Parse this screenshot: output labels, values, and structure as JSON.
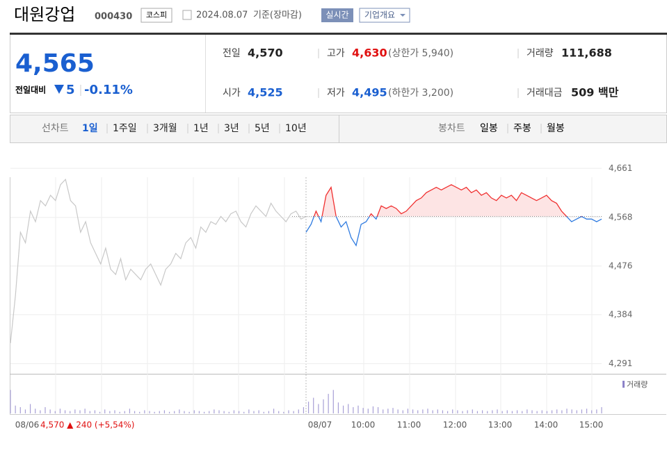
{
  "header": {
    "name": "대원강업",
    "code": "000430",
    "market": "코스피",
    "date": "2024.08.07",
    "basis": "기준(장마감)",
    "realtime": "실시간",
    "company_info": "기업개요"
  },
  "quote": {
    "price": "4,565",
    "change_label": "전일대비",
    "change": "5",
    "change_pct": "-0.11%"
  },
  "stats": [
    {
      "label": "전일",
      "value": "4,570",
      "color": "#222222"
    },
    {
      "label": "고가",
      "value": "4,630",
      "note": "(상한가 5,940)",
      "color": "#e01010"
    },
    {
      "label": "거래량",
      "value": "111,688",
      "color": "#222222"
    },
    {
      "label": "시가",
      "value": "4,525",
      "color": "#1a5fd0"
    },
    {
      "label": "저가",
      "value": "4,495",
      "note": "(하한가 3,200)",
      "color": "#1a5fd0"
    },
    {
      "label": "거래대금",
      "value": "509 백만",
      "color": "#222222"
    }
  ],
  "tabs": {
    "line_label": "선차트",
    "line_periods": [
      "1일",
      "1주일",
      "3개월",
      "1년",
      "3년",
      "5년",
      "10년"
    ],
    "candle_label": "봉차트",
    "candle_periods": [
      "일봉",
      "주봉",
      "월봉"
    ]
  },
  "chart_data": {
    "type": "line",
    "ylim": [
      4272,
      4664
    ],
    "yticks": [
      {
        "value": 4661,
        "label": "4,661"
      },
      {
        "value": 4568,
        "label": "4,568"
      },
      {
        "value": 4476,
        "label": "4,476"
      },
      {
        "value": 4384,
        "label": "4,384"
      },
      {
        "value": 4291,
        "label": "4,291"
      }
    ],
    "baseline": 4570,
    "xlabels": [
      "08/06",
      "08/07",
      "10:00",
      "11:00",
      "12:00",
      "13:00",
      "14:00",
      "15:00"
    ],
    "prev_summary": "4,570 ▲ 240 (+5,54%)",
    "series": [
      {
        "color": "#c8c8c8",
        "values": [
          4330,
          4420,
          4540,
          4520,
          4580,
          4560,
          4600,
          4590,
          4610,
          4600,
          4630,
          4640,
          4600,
          4590,
          4540,
          4560,
          4520,
          4500,
          4480,
          4510,
          4470,
          4460,
          4490,
          4450,
          4470,
          4460,
          4450,
          4470,
          4480,
          4460,
          4440,
          4470,
          4480,
          4500,
          4490,
          4520,
          4530,
          4510,
          4550,
          4540,
          4560,
          4555,
          4570,
          4560,
          4575,
          4580,
          4560,
          4550,
          4575,
          4590,
          4580,
          4570,
          4595,
          4580,
          4570,
          4560,
          4575,
          4580,
          4565,
          4570
        ]
      },
      {
        "color": "#f03030",
        "down_color": "#2f7be0",
        "values": [
          4540,
          4555,
          4580,
          4560,
          4610,
          4625,
          4570,
          4550,
          4560,
          4530,
          4515,
          4555,
          4560,
          4575,
          4565,
          4590,
          4585,
          4590,
          4585,
          4575,
          4580,
          4590,
          4600,
          4605,
          4615,
          4620,
          4625,
          4620,
          4625,
          4630,
          4625,
          4620,
          4625,
          4615,
          4620,
          4610,
          4615,
          4605,
          4600,
          4610,
          4605,
          4610,
          4600,
          4615,
          4610,
          4605,
          4600,
          4605,
          4610,
          4600,
          4595,
          4580,
          4570,
          4560,
          4565,
          4570,
          4565,
          4565,
          4560,
          4565
        ]
      }
    ],
    "volume": {
      "name": "거래량",
      "color": "#a79fd6",
      "ylim": [
        0,
        40
      ],
      "values": [
        30,
        10,
        8,
        5,
        12,
        6,
        4,
        8,
        5,
        3,
        6,
        4,
        3,
        5,
        4,
        6,
        3,
        4,
        2,
        5,
        3,
        4,
        2,
        3,
        6,
        3,
        2,
        4,
        3,
        2,
        3,
        4,
        2,
        3,
        5,
        3,
        2,
        4,
        3,
        2,
        3,
        5,
        4,
        3,
        2,
        4,
        3,
        2,
        5,
        3,
        4,
        2,
        3,
        6,
        3,
        2,
        4,
        3,
        5,
        8,
        15,
        20,
        12,
        18,
        25,
        30,
        14,
        10,
        12,
        8,
        10,
        7,
        6,
        9,
        8,
        5,
        6,
        7,
        5,
        4,
        6,
        5,
        4,
        5,
        6,
        4,
        5,
        4,
        3,
        5,
        4,
        3,
        4,
        5,
        3,
        4,
        3,
        4,
        5,
        3,
        4,
        3,
        4,
        3,
        5,
        4,
        3,
        4,
        3,
        4,
        5,
        4,
        6,
        5,
        4,
        5,
        6,
        4,
        5,
        8
      ]
    }
  }
}
